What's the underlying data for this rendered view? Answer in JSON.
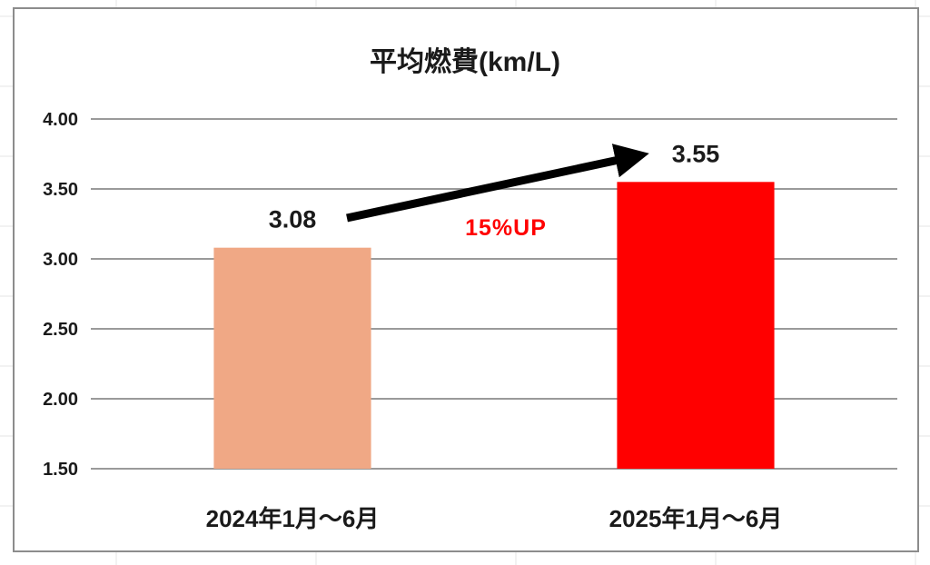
{
  "chart_data": {
    "type": "bar",
    "title": "平均燃費(km/L)",
    "categories": [
      "2024年1月～6月",
      "2025年1月～6月"
    ],
    "values": [
      3.08,
      3.55
    ],
    "data_labels": [
      "3.08",
      "3.55"
    ],
    "bar_colors": [
      "#f0a885",
      "#ff0000"
    ],
    "ylim": [
      1.5,
      4.0
    ],
    "yticks": [
      "1.50",
      "2.00",
      "2.50",
      "3.00",
      "3.50",
      "4.00"
    ],
    "ytick_values": [
      1.5,
      2.0,
      2.5,
      3.0,
      3.5,
      4.0
    ],
    "grid": true,
    "legend": "none",
    "xlabel": "",
    "ylabel": "",
    "annotation": {
      "text": "15%UP",
      "color": "#ff0000",
      "arrow": "from 2024 bar label to 2025 bar label"
    }
  }
}
